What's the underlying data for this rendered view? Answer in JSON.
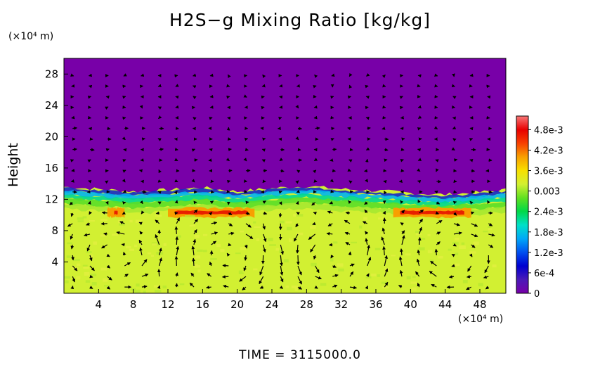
{
  "chart_data": {
    "type": "heatmap",
    "title": "H2S−g Mixing Ratio [kg/kg]",
    "xlabel": "",
    "ylabel": "Height",
    "x_units": "(×10⁴ m)",
    "y_units": "(×10⁴ m)",
    "footer": "TIME  =  3115000.0",
    "xlim": [
      0,
      51
    ],
    "ylim": [
      0,
      30
    ],
    "x_ticks": [
      4,
      8,
      12,
      16,
      20,
      24,
      28,
      32,
      36,
      40,
      44,
      48
    ],
    "y_ticks": [
      4,
      8,
      12,
      16,
      20,
      24,
      28
    ],
    "colorbar": {
      "range": [
        0,
        0.0052
      ],
      "ticks": [
        0,
        0.0006,
        0.0012,
        0.0018,
        0.0024,
        0.003,
        0.0036,
        0.0042,
        0.0048
      ],
      "tick_labels": [
        "0",
        "6e-4",
        "1.2e-3",
        "1.8e-3",
        "2.4e-3",
        "0.003",
        "3.6e-3",
        "4.2e-3",
        "4.8e-3"
      ]
    },
    "field_summary": {
      "upper_layer_value": 0.0,
      "lower_layer_value": 0.0033,
      "interface_height": [
        [
          0,
          13.6
        ],
        [
          4,
          13.3
        ],
        [
          8,
          13.0
        ],
        [
          12,
          13.2
        ],
        [
          16,
          13.5
        ],
        [
          20,
          13.0
        ],
        [
          24,
          13.4
        ],
        [
          28,
          13.7
        ],
        [
          32,
          13.3
        ],
        [
          36,
          13.1
        ],
        [
          40,
          12.8
        ],
        [
          44,
          12.6
        ],
        [
          48,
          12.9
        ],
        [
          51,
          13.2
        ]
      ],
      "high_band_height": 10.3,
      "high_band_segments": [
        [
          12,
          22
        ],
        [
          38,
          47
        ],
        [
          5,
          7
        ]
      ]
    },
    "vector_field": "wind arrows overlaid on a regular grid"
  },
  "colors": {
    "upper": "#7800a8",
    "lower": "#d2f032",
    "colorbar": [
      "#7800a8",
      "#4a1ab8",
      "#0000d0",
      "#0050f0",
      "#00a8f8",
      "#00e0c8",
      "#00d848",
      "#60e020",
      "#d2f032",
      "#f8e000",
      "#f8a000",
      "#f84000",
      "#e80000",
      "#f87878"
    ]
  },
  "title": "H2S−g Mixing Ratio [kg/kg]"
}
